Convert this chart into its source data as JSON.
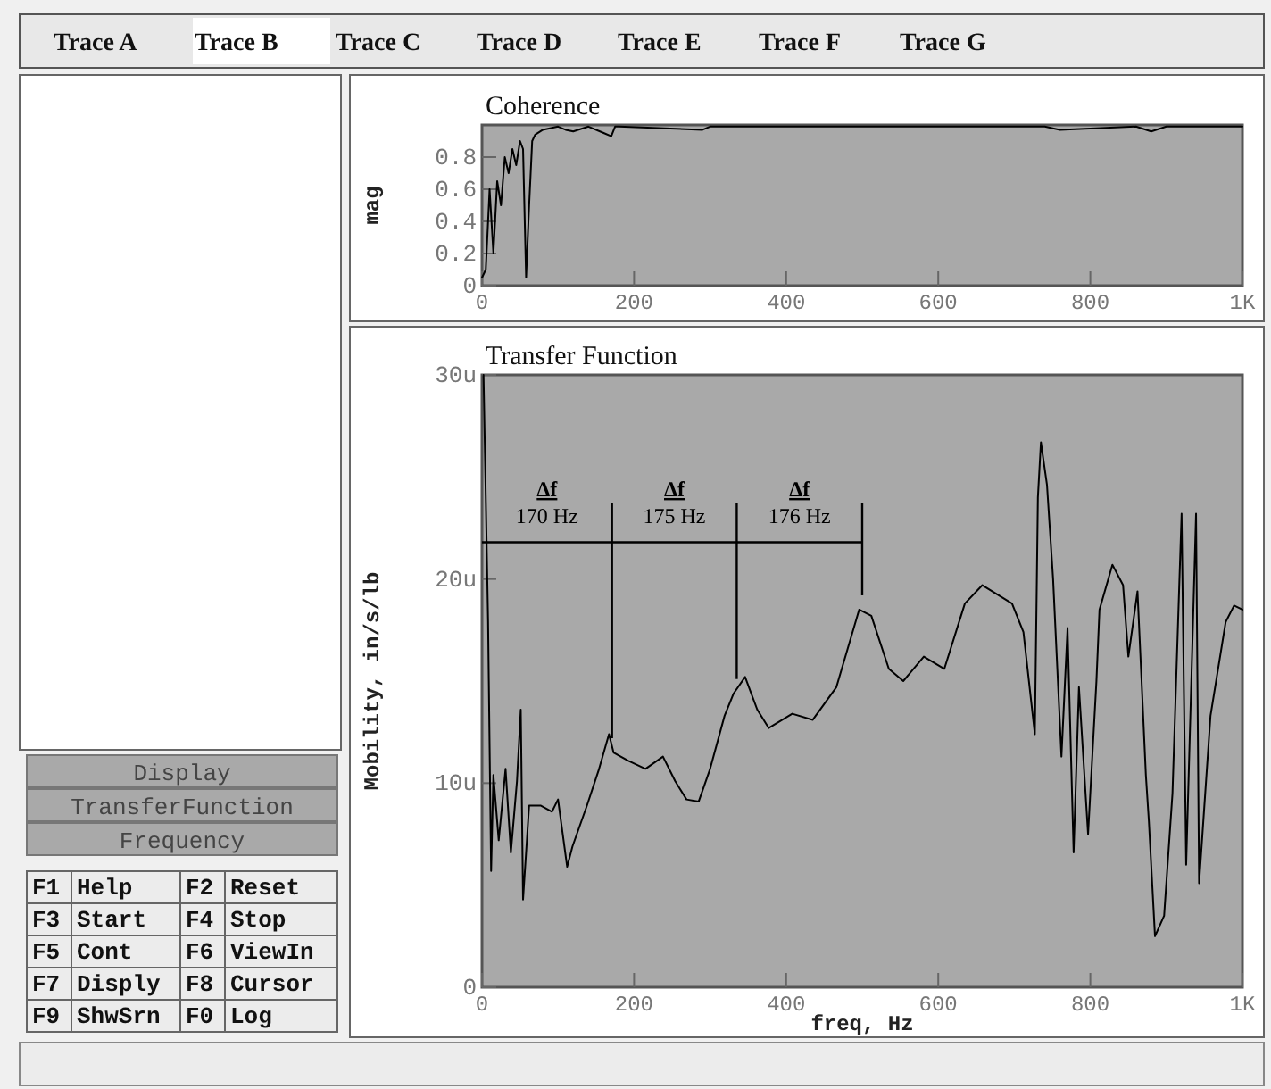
{
  "chart_data": [
    {
      "type": "line",
      "title": "Coherence",
      "ylabel": "mag",
      "xlim": [
        0,
        1000
      ],
      "ylim": [
        0,
        1
      ],
      "xticks": [
        0,
        200,
        400,
        600,
        800,
        {
          "value": 1000,
          "label": "1K"
        }
      ],
      "yticks": [
        0,
        0.2,
        0.4,
        0.6,
        0.8
      ],
      "x": [
        0,
        5,
        10,
        15,
        20,
        25,
        30,
        35,
        40,
        45,
        50,
        54,
        58,
        62,
        66,
        70,
        80,
        100,
        110,
        120,
        140,
        160,
        170,
        175,
        180,
        290,
        300,
        740,
        760,
        860,
        880,
        900,
        1000
      ],
      "series": [
        {
          "color": "#000000",
          "values": [
            0.05,
            0.1,
            0.6,
            0.2,
            0.65,
            0.5,
            0.8,
            0.7,
            0.85,
            0.75,
            0.9,
            0.85,
            0.05,
            0.5,
            0.9,
            0.94,
            0.97,
            0.99,
            0.97,
            0.96,
            0.99,
            0.95,
            0.93,
            0.99,
            0.99,
            0.97,
            0.99,
            0.99,
            0.97,
            0.99,
            0.96,
            0.99,
            0.99
          ]
        }
      ]
    },
    {
      "type": "line",
      "title": "Transfer Function",
      "xlabel": "freq, Hz",
      "ylabel": "Mobility, in/s/lb",
      "xlim": [
        0,
        1000
      ],
      "ylim": [
        0,
        30
      ],
      "xticks": [
        0,
        200,
        400,
        600,
        800,
        {
          "value": 1000,
          "label": "1K"
        }
      ],
      "yticks": [
        0,
        {
          "value": 10,
          "label": "10u"
        },
        {
          "value": 20,
          "label": "20u"
        },
        {
          "value": 30,
          "label": "30u"
        }
      ],
      "x": [
        2,
        8,
        12,
        15,
        22,
        31,
        38,
        46,
        51,
        54,
        62,
        77,
        92,
        100,
        112,
        119,
        138,
        154,
        167,
        173,
        192,
        215,
        238,
        254,
        269,
        285,
        300,
        319,
        331,
        346,
        362,
        377,
        408,
        435,
        466,
        496,
        512,
        535,
        554,
        581,
        608,
        635,
        658,
        697,
        712,
        727,
        731,
        735,
        743,
        751,
        762,
        770,
        778,
        785,
        797,
        808,
        812,
        829,
        843,
        850,
        862,
        873,
        877,
        885,
        897,
        908,
        920,
        926,
        939,
        943,
        958,
        978,
        989,
        1000
      ],
      "series": [
        {
          "color": "#000000",
          "values": [
            30,
            17.9,
            5.7,
            10.4,
            7.2,
            10.7,
            6.6,
            10.1,
            13.6,
            4.3,
            8.9,
            8.9,
            8.6,
            9.2,
            5.9,
            6.9,
            8.9,
            10.7,
            12.4,
            11.5,
            11.1,
            10.7,
            11.3,
            10.1,
            9.2,
            9.1,
            10.7,
            13.3,
            14.4,
            15.2,
            13.6,
            12.7,
            13.4,
            13.1,
            14.7,
            18.5,
            18.2,
            15.6,
            15,
            16.2,
            15.6,
            18.8,
            19.7,
            18.8,
            17.4,
            12.4,
            24,
            26.7,
            24.6,
            20,
            11.3,
            17.6,
            6.6,
            14.7,
            7.5,
            15,
            18.5,
            20.7,
            19.7,
            16.2,
            19.4,
            10.4,
            8.1,
            2.5,
            3.5,
            9.5,
            23.2,
            6,
            23.2,
            5.1,
            13.3,
            17.9,
            18.7,
            18.5
          ]
        }
      ],
      "ref_lines": [
        {
          "axis": "y",
          "value": 21.8
        },
        {
          "axis": "x",
          "value": 171
        },
        {
          "axis": "x",
          "value": 335
        },
        {
          "axis": "x",
          "value": 500
        }
      ],
      "annotations": [
        "Δf 170 Hz",
        "Δf 175 Hz",
        "Δf 176 Hz"
      ]
    },
    {
      "type": "other",
      "annotations": [
        "Trace A",
        "Trace B",
        "Trace C",
        "Trace D",
        "Trace E",
        "Trace F",
        "Trace G",
        "Display",
        "TransferFunction",
        "Frequency",
        "F1",
        "Help",
        "F2",
        "Reset",
        "F3",
        "Start",
        "F4",
        "Stop",
        "F5",
        "Cont",
        "F6",
        "ViewIn",
        "F7",
        "Disply",
        "F8",
        "Cursor",
        "F9",
        "ShwSrn",
        "F0",
        "Log"
      ]
    }
  ]
}
